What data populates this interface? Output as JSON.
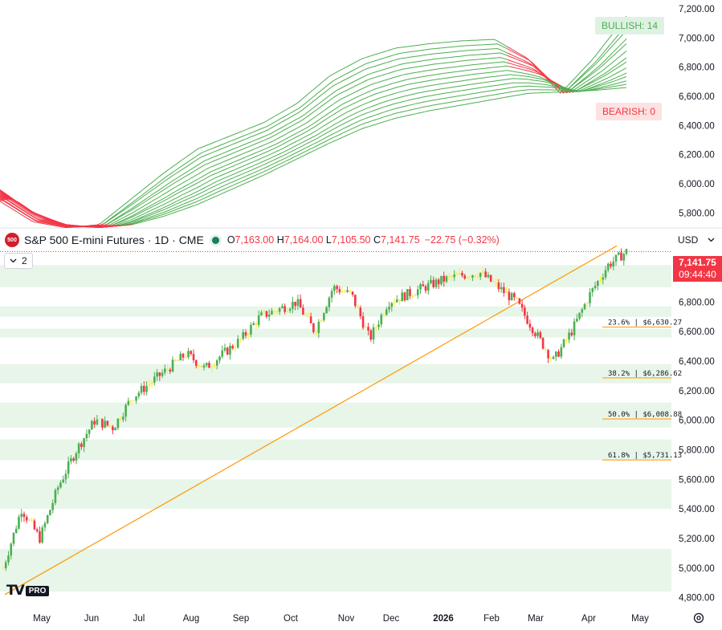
{
  "header": {
    "badge": "500",
    "symbol": "S&P 500 E-mini Futures · 1D · CME",
    "open_label": "O",
    "open": "7,163.00",
    "high_label": "H",
    "high": "7,164.00",
    "low_label": "L",
    "low": "7,105.50",
    "close_label": "C",
    "close": "7,141.75",
    "change": "−22.75 (−0.32%)"
  },
  "currency": {
    "label": "USD",
    "icon": "chevron-down-icon"
  },
  "collapse": {
    "label": "2",
    "icon": "chevron-down-icon"
  },
  "price_tag": {
    "price": "7,141.75",
    "countdown": "09:44:40"
  },
  "ribbon_labels": {
    "bullish": "BULLISH: 14",
    "bearish": "BEARISH: 0"
  },
  "branding": {
    "logo": "TV",
    "pro": "PRO"
  },
  "colors": {
    "up": "#4caf50",
    "down": "#f23645",
    "neutral": "#ffeb3b",
    "trendline": "#ff9800",
    "zone": "#e8f5e9"
  },
  "chart_data": [
    {
      "type": "line",
      "name": "moving average ribbon",
      "yticks": [
        "5,800.00",
        "6,000.00",
        "6,200.00",
        "6,400.00",
        "6,600.00",
        "6,800.00",
        "7,000.00",
        "7,200.00"
      ],
      "ylim": [
        5720,
        7260
      ],
      "ribbon_count": 14,
      "fast_series": [
        5880,
        5740,
        5700,
        5720,
        5900,
        6080,
        6240,
        6330,
        6420,
        6550,
        6740,
        6860,
        6930,
        6960,
        6980,
        6990,
        6860,
        6620,
        6860,
        7150
      ],
      "slow_series": [
        5960,
        5800,
        5720,
        5700,
        5720,
        5780,
        5860,
        5960,
        6060,
        6170,
        6280,
        6380,
        6450,
        6500,
        6540,
        6580,
        6620,
        6630,
        6640,
        6660
      ]
    },
    {
      "type": "candlestick",
      "name": "S&P 500 E-mini Futures",
      "x_labels": [
        "May",
        "Jun",
        "Jul",
        "Aug",
        "Sep",
        "Oct",
        "Nov",
        "Dec",
        "2026",
        "Feb",
        "Mar",
        "Apr",
        "May"
      ],
      "yticks": [
        "4,800.00",
        "5,000.00",
        "5,200.00",
        "5,400.00",
        "5,600.00",
        "5,800.00",
        "6,000.00",
        "6,200.00",
        "6,400.00",
        "6,600.00",
        "6,800.00",
        "7,000.00"
      ],
      "ylim": [
        4760,
        7160
      ],
      "close_path": [
        5000,
        5400,
        5200,
        5550,
        5800,
        6000,
        5950,
        6150,
        6250,
        6350,
        6450,
        6350,
        6450,
        6550,
        6700,
        6750,
        6800,
        6600,
        6900,
        6850,
        6550,
        6800,
        6850,
        6900,
        6950,
        6980,
        7000,
        6900,
        6800,
        6600,
        6400,
        6600,
        6850,
        7050,
        7140
      ],
      "last_close": 7141.75,
      "support_zones": [
        [
          6900,
          7050
        ],
        [
          6700,
          6770
        ],
        [
          6560,
          6620
        ],
        [
          6250,
          6380
        ],
        [
          5950,
          6120
        ],
        [
          5730,
          5870
        ],
        [
          5400,
          5600
        ],
        [
          4840,
          5130
        ]
      ],
      "fib_levels": [
        {
          "label": "23.6% | $6,630.27",
          "value": 6630.27
        },
        {
          "label": "38.2% | $6,286.62",
          "value": 6286.62
        },
        {
          "label": "50.0% | $6,008.88",
          "value": 6008.88
        },
        {
          "label": "61.8% | $5,731.13",
          "value": 5731.13
        }
      ],
      "trendline": [
        4820,
        7180
      ]
    }
  ]
}
